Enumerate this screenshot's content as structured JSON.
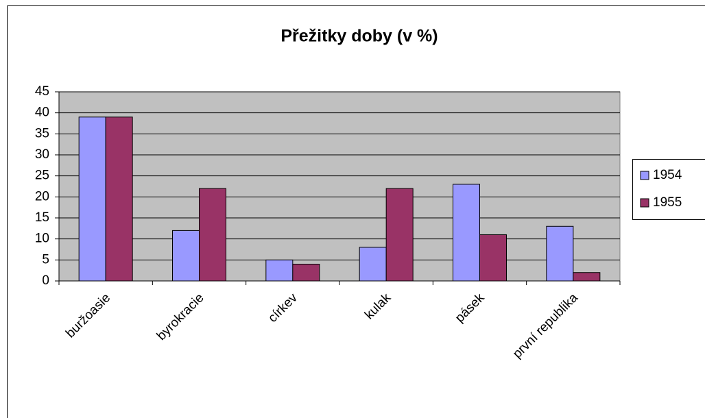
{
  "chart_data": {
    "type": "bar",
    "title": "Přežitky doby (v %)",
    "categories": [
      "buržoasie",
      "byrokracie",
      "církev",
      "kulak",
      "pásek",
      "první republika"
    ],
    "series": [
      {
        "name": "1954",
        "color": "#9999ff",
        "values": [
          39,
          12,
          5,
          8,
          23,
          13
        ]
      },
      {
        "name": "1955",
        "color": "#993366",
        "values": [
          39,
          22,
          4,
          22,
          11,
          2
        ]
      }
    ],
    "ylim": [
      0,
      45
    ],
    "yticks": [
      0,
      5,
      10,
      15,
      20,
      25,
      30,
      35,
      40,
      45
    ],
    "grid": true,
    "legend": "right",
    "plot_background": "#c0c0c0"
  }
}
